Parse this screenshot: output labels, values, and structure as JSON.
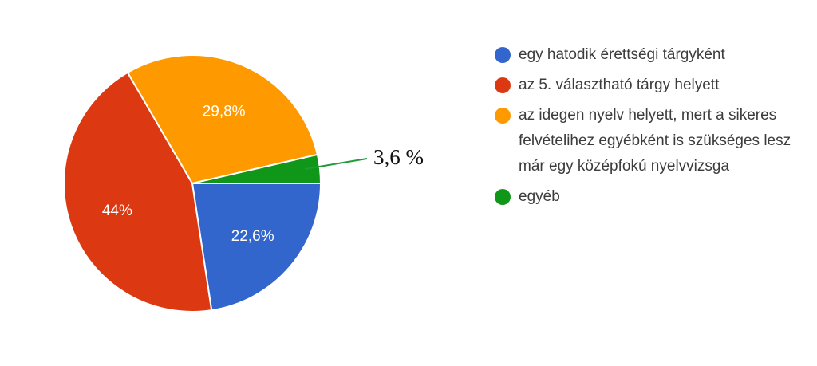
{
  "chart_data": {
    "type": "pie",
    "categories": [
      "egy hatodik érettségi tárgyként",
      "az 5. választható tárgy helyett",
      "az idegen nyelv helyett, mert a sikeres felvételihez egyébként is szükséges lesz már egy középfokú nyelvvizsga",
      "egyéb"
    ],
    "values": [
      22.6,
      44,
      29.8,
      3.6
    ],
    "slice_labels": [
      "22,6%",
      "44%",
      "29,8%",
      ""
    ],
    "colors": [
      "#3366cc",
      "#dc3912",
      "#ff9900",
      "#109618"
    ],
    "annotation": "3,6 %",
    "legend_position": "right",
    "start": "3 o'clock, clockwise"
  }
}
